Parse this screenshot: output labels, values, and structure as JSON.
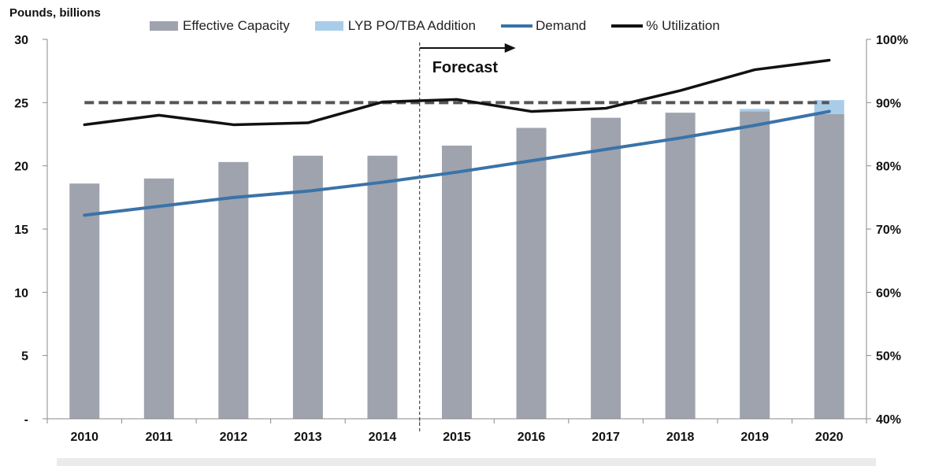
{
  "chart_data": {
    "type": "bar",
    "ylabel": "Pounds, billions",
    "categories": [
      "2010",
      "2011",
      "2012",
      "2013",
      "2014",
      "2015",
      "2016",
      "2017",
      "2018",
      "2019",
      "2020"
    ],
    "y_left": {
      "range": [
        0,
        30
      ],
      "ticks": [
        "-",
        "5",
        "10",
        "15",
        "20",
        "25",
        "30"
      ]
    },
    "y_right": {
      "range": [
        40,
        100
      ],
      "ticks": [
        "40%",
        "50%",
        "60%",
        "70%",
        "80%",
        "90%",
        "100%"
      ]
    },
    "series": [
      {
        "name": "Effective Capacity",
        "kind": "bar",
        "color": "#9ea3ae",
        "values": [
          18.6,
          19.0,
          20.3,
          20.8,
          20.8,
          21.6,
          23.0,
          23.8,
          24.2,
          24.3,
          24.1
        ]
      },
      {
        "name": "LYB PO/TBA Addition",
        "kind": "bar-stacked",
        "color": "#a9cce9",
        "values": [
          0,
          0,
          0,
          0,
          0,
          0,
          0,
          0,
          0,
          0.2,
          1.1
        ]
      },
      {
        "name": "Demand",
        "kind": "line",
        "axis": "left",
        "color": "#3a73a8",
        "values": [
          16.1,
          16.8,
          17.5,
          18.0,
          18.7,
          19.5,
          20.4,
          21.3,
          22.2,
          23.2,
          24.3
        ]
      },
      {
        "name": "% Utilization",
        "kind": "line",
        "axis": "right",
        "color": "#111111",
        "values": [
          86.5,
          88.0,
          86.5,
          86.8,
          90.1,
          90.5,
          88.6,
          89.1,
          91.9,
          95.2,
          96.7
        ]
      }
    ],
    "reference_line": {
      "axis": "right",
      "value": 90,
      "style": "dashed",
      "color": "#555555"
    },
    "forecast": {
      "label": "Forecast",
      "divider_between": [
        "2014",
        "2015"
      ]
    },
    "legend_position": "top",
    "grid": false
  }
}
